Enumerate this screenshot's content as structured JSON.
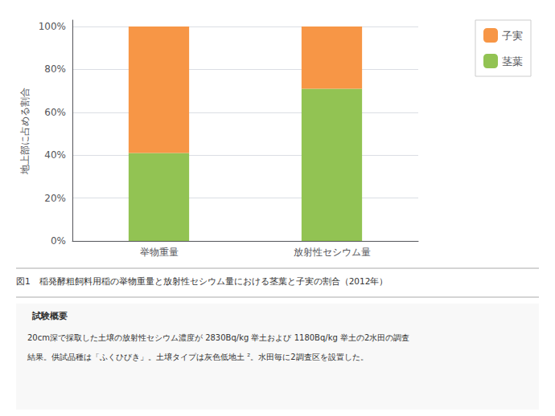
{
  "chart_data": {
    "type": "bar",
    "stacked": true,
    "categories": [
      "举物重量",
      "放射性セシウム量"
    ],
    "series": [
      {
        "name": "茎葉",
        "color": "#92c353",
        "values": [
          41,
          71
        ]
      },
      {
        "name": "子実",
        "color": "#f79646",
        "values": [
          59,
          29
        ]
      }
    ],
    "legend_order": [
      "子実",
      "茎葉"
    ],
    "ylabel": "地上部に占める割合",
    "ylim": [
      0,
      103
    ],
    "yticks": [
      {
        "value": 0,
        "label": "0%"
      },
      {
        "value": 20,
        "label": "20%"
      },
      {
        "value": 40,
        "label": "40%"
      },
      {
        "value": 60,
        "label": "60%"
      },
      {
        "value": 80,
        "label": "80%"
      },
      {
        "value": 100,
        "label": "100%"
      }
    ],
    "grid": true,
    "legend": "right",
    "caption": "図1　稲発酵粗飼料用稲の举物重量と放射性セシウム量における茎葉と子実の割合（2012年）",
    "note_title": "試験概要",
    "notes": [
      "20cm深で採取した土壌の放射性セシウム濃度が 2830Bq/kg 举土および 1180Bq/kg 举土の2水田の調査",
      "結果。供試品種は「ふくひびき」。土壌タイプは灰色低地土 ²。水田毎に2調査区を設置した。"
    ]
  }
}
